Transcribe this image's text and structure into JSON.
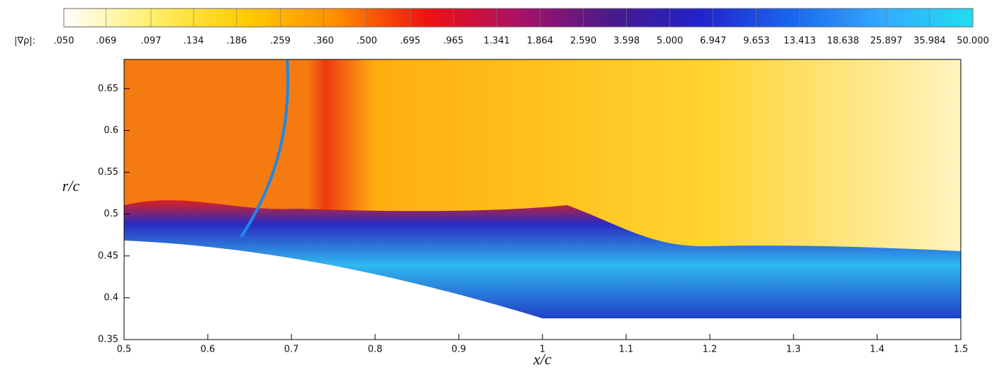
{
  "chart_data": {
    "type": "contour",
    "colorbar_label": "|∇ρ|:",
    "colorbar_log": true,
    "colorbar_lim": [
      0.05,
      50
    ],
    "colorbar_ticks": [
      {
        "value": 0.05,
        "label": ".050"
      },
      {
        "value": 0.069,
        "label": ".069"
      },
      {
        "value": 0.097,
        "label": ".097"
      },
      {
        "value": 0.134,
        "label": ".134"
      },
      {
        "value": 0.186,
        "label": ".186"
      },
      {
        "value": 0.259,
        "label": ".259"
      },
      {
        "value": 0.36,
        "label": ".360"
      },
      {
        "value": 0.5,
        "label": ".500"
      },
      {
        "value": 0.695,
        "label": ".695"
      },
      {
        "value": 0.965,
        "label": ".965"
      },
      {
        "value": 1.341,
        "label": "1.341"
      },
      {
        "value": 1.864,
        "label": "1.864"
      },
      {
        "value": 2.59,
        "label": "2.590"
      },
      {
        "value": 3.598,
        "label": "3.598"
      },
      {
        "value": 5,
        "label": "5.000"
      },
      {
        "value": 6.947,
        "label": "6.947"
      },
      {
        "value": 9.653,
        "label": "9.653"
      },
      {
        "value": 13.413,
        "label": "13.413"
      },
      {
        "value": 18.638,
        "label": "18.638"
      },
      {
        "value": 25.897,
        "label": "25.897"
      },
      {
        "value": 35.984,
        "label": "35.984"
      },
      {
        "value": 50,
        "label": "50.000"
      }
    ],
    "colormap": [
      "#ffffff",
      "#ffee66",
      "#ffcc00",
      "#ff8c00",
      "#ee1111",
      "#aa1166",
      "#4a1a8a",
      "#2222cc",
      "#1a66ee",
      "#33aaff",
      "#22ddee"
    ],
    "x_label": "x/c",
    "y_label": "r/c",
    "xlim": [
      0.5,
      1.5
    ],
    "ylim": [
      0.35,
      0.685
    ],
    "xticks": [
      0.5,
      0.6,
      0.7,
      0.8,
      0.9,
      1,
      1.1,
      1.2,
      1.3,
      1.4,
      1.5
    ],
    "yticks": [
      0.35,
      0.4,
      0.45,
      0.5,
      0.55,
      0.6,
      0.65
    ]
  }
}
